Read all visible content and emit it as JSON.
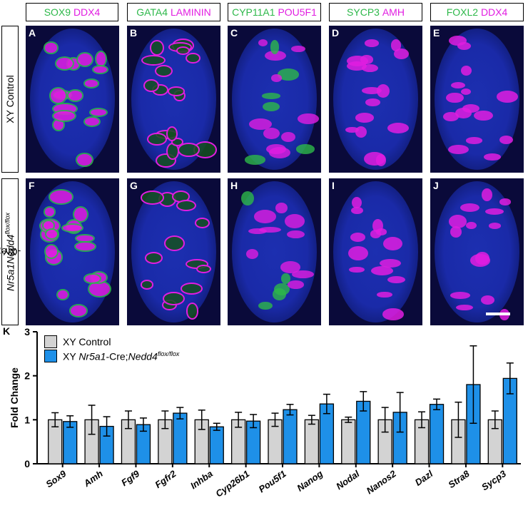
{
  "header": {
    "col1": {
      "green": "SOX9",
      "magenta": "DDX4"
    },
    "col2": {
      "green": "GATA4",
      "magenta": "LAMININ"
    },
    "col3": {
      "green": "CYP11A1",
      "magenta": "POU5F1"
    },
    "col4": {
      "green": "SYCP3",
      "magenta": "AMH"
    },
    "col5": {
      "green": "FOXL2",
      "magenta": "DDX4"
    }
  },
  "rows": {
    "row1_label": "XY Control",
    "row2_label_prefix": "XY ",
    "row2_gene1": "Nr5a1",
    "row2_mid": "-Cre;",
    "row2_gene2": "Nedd4",
    "row2_sup": "flox/flox"
  },
  "panels": [
    "A",
    "B",
    "C",
    "D",
    "E",
    "F",
    "G",
    "H",
    "I",
    "J"
  ],
  "colors": {
    "green": "#2db84a",
    "magenta": "#e11de1",
    "control": "#d3d3d3",
    "mutant": "#1e90e8"
  },
  "chart_label": "K",
  "chart_data": {
    "type": "bar",
    "ylabel": "Fold Change",
    "ylim": [
      0,
      3
    ],
    "yticks": [
      "0",
      "1",
      "2",
      "3"
    ],
    "categories": [
      "Sox9",
      "Amh",
      "Fgf9",
      "Fgfr2",
      "Inhba",
      "Cyp26b1",
      "Pou5f1",
      "Nanog",
      "Nodal",
      "Nanos2",
      "Dazl",
      "Stra8",
      "Sycp3"
    ],
    "series": [
      {
        "name": "XY Control",
        "values": [
          1.0,
          1.0,
          1.0,
          1.0,
          1.0,
          1.0,
          1.0,
          1.0,
          1.0,
          1.0,
          1.0,
          1.0,
          1.0
        ],
        "errors": [
          0.16,
          0.33,
          0.2,
          0.2,
          0.22,
          0.17,
          0.15,
          0.1,
          0.06,
          0.28,
          0.18,
          0.4,
          0.2
        ]
      },
      {
        "name_prefix": "XY ",
        "name_gene1": "Nr5a1",
        "name_mid": "-Cre;",
        "name_gene2": "Nedd4",
        "name_sup": "flox/flox",
        "values": [
          0.96,
          0.85,
          0.89,
          1.15,
          0.84,
          0.97,
          1.23,
          1.36,
          1.42,
          1.17,
          1.35,
          1.8,
          1.94
        ],
        "errors": [
          0.13,
          0.22,
          0.15,
          0.13,
          0.08,
          0.15,
          0.12,
          0.22,
          0.22,
          0.45,
          0.12,
          0.88,
          0.35
        ]
      }
    ]
  }
}
